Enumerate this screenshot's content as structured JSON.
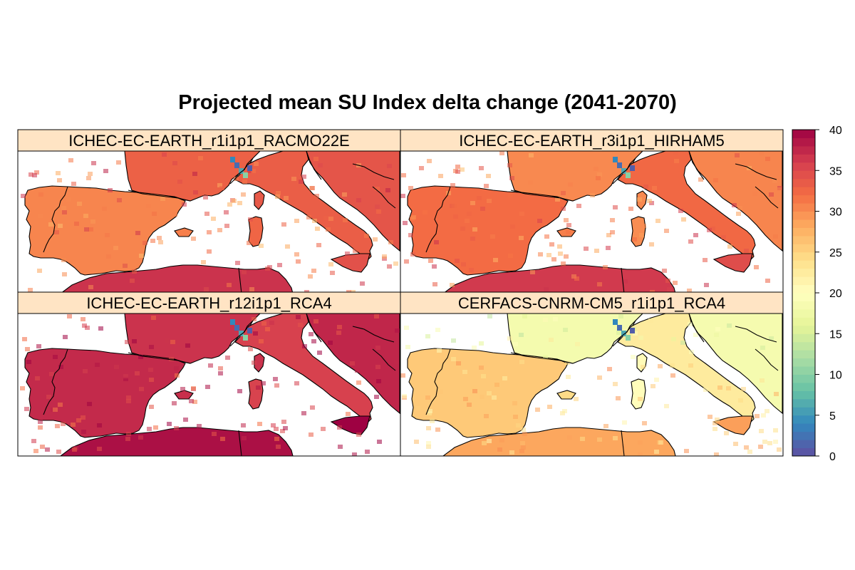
{
  "title": "Projected mean SU Index delta change (2041-2070)",
  "colors": {
    "strip_background": "#ffe4c4",
    "panel_border": "#000000",
    "sea": "#ffffff",
    "palette": [
      "#5e4fa2",
      "#3288bd",
      "#66c2a5",
      "#abdda4",
      "#e6f598",
      "#ffffbf",
      "#fee08b",
      "#fdae61",
      "#f46d43",
      "#d53e4f",
      "#9e0142"
    ]
  },
  "panels": [
    {
      "label": "ICHEC-EC-EARTH_r1i1p1_RACMO22E",
      "base_value": 31.5,
      "north_value": 33
    },
    {
      "label": "ICHEC-EC-EARTH_r3i1p1_HIRHAM5",
      "base_value": 32,
      "north_value": 31
    },
    {
      "label": "ICHEC-EC-EARTH_r12i1p1_RCA4",
      "base_value": 36,
      "north_value": 37
    },
    {
      "label": "CERFACS-CNRM-CM5_r1i1p1_RCA4",
      "base_value": 25.5,
      "north_value": 18
    }
  ],
  "colorbar": {
    "min": 0,
    "max": 40,
    "ticks": [
      "0",
      "5",
      "10",
      "15",
      "20",
      "25",
      "30",
      "35",
      "40"
    ]
  }
}
